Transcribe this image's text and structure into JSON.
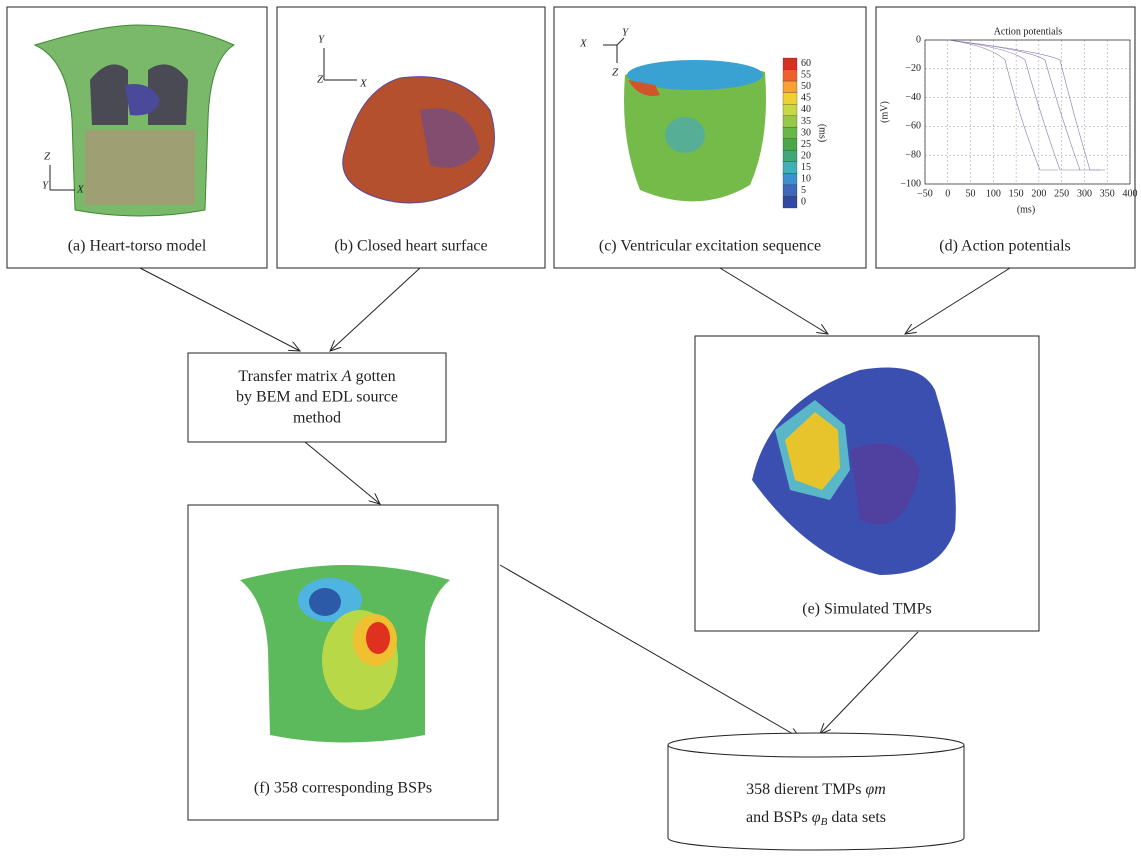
{
  "panels": [
    {
      "caption": "(a) Heart-torso model",
      "axes": [
        "Z",
        "Y",
        "X"
      ]
    },
    {
      "caption": "(b) Closed heart surface",
      "axes": [
        "Y",
        "Z",
        "X"
      ]
    },
    {
      "caption": "(c) Ventricular excitation sequence",
      "axes": [
        "X",
        "Y",
        "Z"
      ],
      "colorbar": {
        "labels": [
          "60",
          "55",
          "50",
          "45",
          "40",
          "35",
          "30",
          "25",
          "20",
          "15",
          "10",
          "5",
          "0"
        ],
        "unit": "(ms)"
      }
    },
    {
      "caption": "(d) Action potentials",
      "plot": {
        "title": "Action potentials",
        "ylabel": "(mV)",
        "xlabel": "(ms)",
        "yticks": [
          "0",
          "−20",
          "−40",
          "−60",
          "−80",
          "−100"
        ],
        "xticks": [
          "−50",
          "0",
          "50",
          "100",
          "150",
          "200",
          "250",
          "300",
          "350",
          "400"
        ]
      }
    },
    {
      "caption": "(e) Simulated TMPs"
    },
    {
      "caption": "(f) 358 corresponding BSPs"
    }
  ],
  "transfer": {
    "line1": {
      "pre": "Transfer matrix ",
      "var": "A",
      "post": " gotten"
    },
    "line2": "by BEM and EDL source",
    "line3": "method"
  },
  "datasets": {
    "line1": {
      "pre": "358 dierent TMPs ",
      "var": "φm"
    },
    "line2": {
      "pre": "and BSPs ",
      "var": "φ",
      "sub": "B",
      "post": " data sets"
    }
  }
}
